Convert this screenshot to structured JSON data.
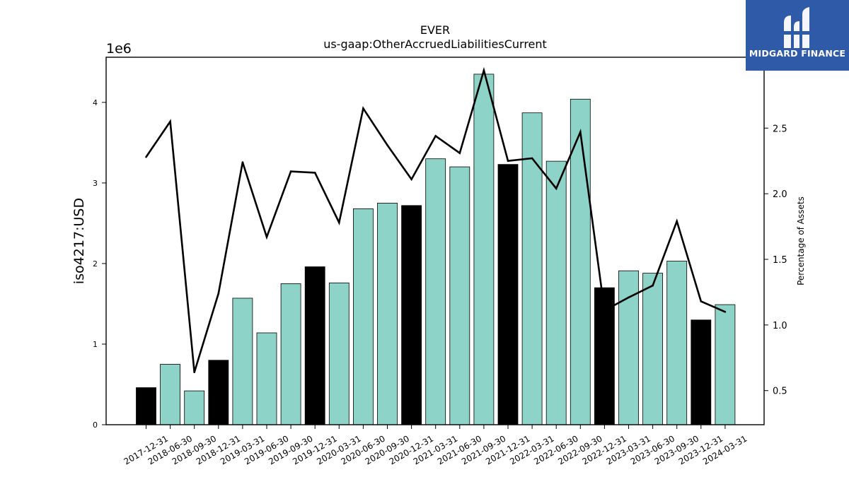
{
  "chart_data": {
    "type": "bar",
    "title": "EVER",
    "subtitle": "us-gaap:OtherAccruedLiabilitiesCurrent",
    "ylabel": "iso4217:USD",
    "y_offset_label": "1e6",
    "y2label": "Percentage of Assets",
    "ylim": [
      0,
      4560000
    ],
    "y2lim": [
      0.24,
      3.04
    ],
    "y_ticks": [
      0,
      1,
      2,
      3,
      4
    ],
    "y2_ticks": [
      "0.5",
      "1.0",
      "1.5",
      "2.0",
      "2.5"
    ],
    "legend": "none",
    "grid": false,
    "categories": [
      "2017-12-31",
      "2018-06-30",
      "2018-09-30",
      "2018-12-31",
      "2019-03-31",
      "2019-06-30",
      "2019-09-30",
      "2019-12-31",
      "2020-03-31",
      "2020-06-30",
      "2020-09-30",
      "2020-12-31",
      "2021-03-31",
      "2021-06-30",
      "2021-09-30",
      "2021-12-31",
      "2022-03-31",
      "2022-06-30",
      "2022-09-30",
      "2022-12-31",
      "2023-03-31",
      "2023-06-30",
      "2023-09-30",
      "2023-12-31",
      "2024-03-31"
    ],
    "series": [
      {
        "axis": "left",
        "style": "bar",
        "values": [
          460000,
          750000,
          420000,
          800000,
          1570000,
          1140000,
          1750000,
          1960000,
          1760000,
          2680000,
          2750000,
          2720000,
          3300000,
          3200000,
          4350000,
          3230000,
          3870000,
          3270000,
          4040000,
          1700000,
          1910000,
          1880000,
          2030000,
          1300000,
          1490000
        ],
        "is_year_end": [
          true,
          false,
          false,
          true,
          false,
          false,
          false,
          true,
          false,
          false,
          false,
          true,
          false,
          false,
          false,
          true,
          false,
          false,
          false,
          true,
          false,
          false,
          false,
          true,
          false
        ]
      },
      {
        "axis": "right",
        "style": "line",
        "values": [
          2.28,
          2.55,
          0.64,
          1.24,
          2.24,
          1.67,
          2.17,
          2.16,
          1.78,
          2.65,
          2.37,
          2.11,
          2.44,
          2.31,
          2.94,
          2.25,
          2.27,
          2.04,
          2.47,
          1.11,
          1.21,
          1.3,
          1.79,
          1.18,
          1.1
        ]
      }
    ],
    "colors": {
      "bar": "#8dd3c7",
      "bar_year_end": "#000000",
      "line": "#000000"
    }
  },
  "logo": {
    "text": "MIDGARD FINANCE",
    "background": "#2f5aa8"
  }
}
